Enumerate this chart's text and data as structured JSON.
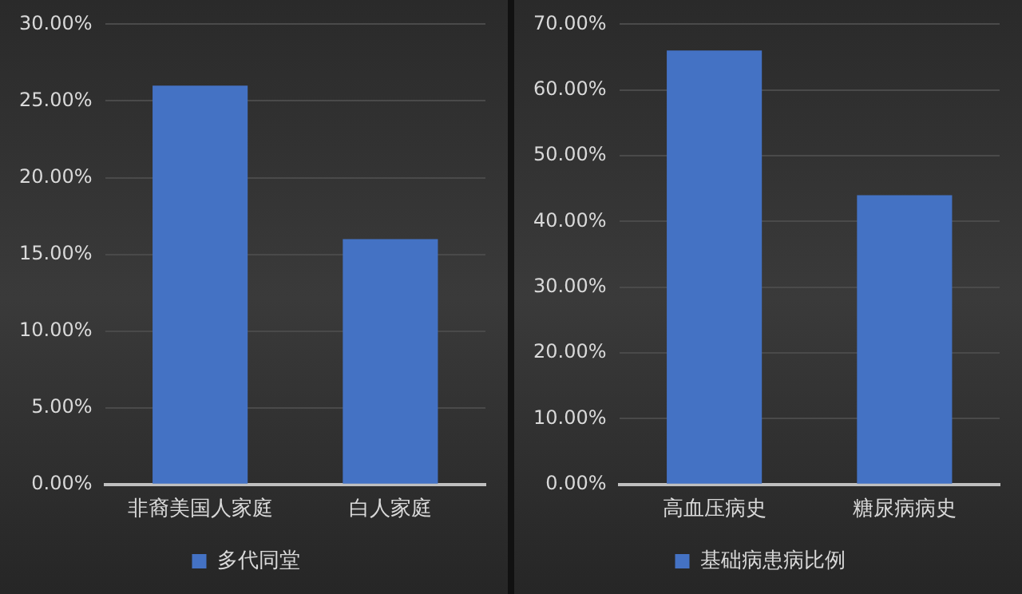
{
  "chart_data": [
    {
      "type": "bar",
      "categories": [
        "非裔美国人家庭",
        "白人家庭"
      ],
      "series": [
        {
          "name": "多代同堂",
          "color": "#4472c4",
          "values": [
            26,
            16
          ]
        }
      ],
      "ylim": [
        0,
        30
      ],
      "yticks": [
        {
          "value": 0,
          "label": "0.00%"
        },
        {
          "value": 5,
          "label": "5.00%"
        },
        {
          "value": 10,
          "label": "10.00%"
        },
        {
          "value": 15,
          "label": "15.00%"
        },
        {
          "value": 20,
          "label": "20.00%"
        },
        {
          "value": 25,
          "label": "25.00%"
        },
        {
          "value": 30,
          "label": "30.00%"
        }
      ],
      "grid": "y",
      "legend": "bottom"
    },
    {
      "type": "bar",
      "categories": [
        "高血压病史",
        "糖尿病病史"
      ],
      "series": [
        {
          "name": "基础病患病比例",
          "color": "#4472c4",
          "values": [
            66,
            44
          ]
        }
      ],
      "ylim": [
        0,
        70
      ],
      "yticks": [
        {
          "value": 0,
          "label": "0.00%"
        },
        {
          "value": 10,
          "label": "10.00%"
        },
        {
          "value": 20,
          "label": "20.00%"
        },
        {
          "value": 30,
          "label": "30.00%"
        },
        {
          "value": 40,
          "label": "40.00%"
        },
        {
          "value": 50,
          "label": "50.00%"
        },
        {
          "value": 60,
          "label": "60.00%"
        },
        {
          "value": 70,
          "label": "70.00%"
        }
      ],
      "grid": "y",
      "legend": "bottom"
    }
  ]
}
